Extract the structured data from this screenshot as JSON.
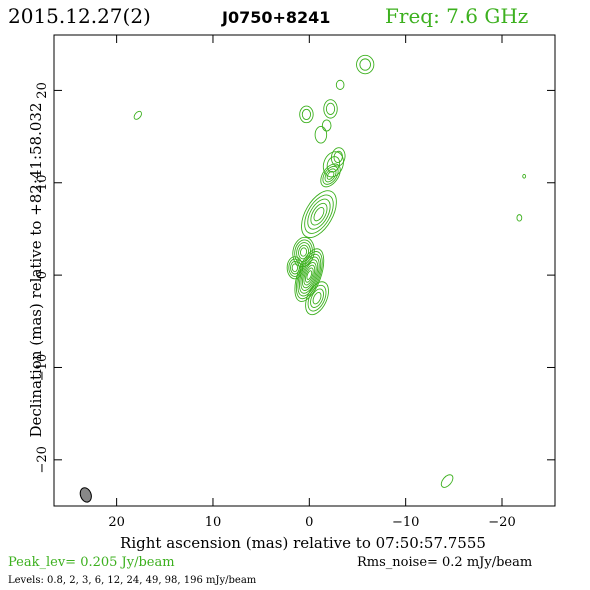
{
  "header": {
    "date": "2015.12.27(2)",
    "source": "J0750+8241",
    "freq": "Freq: 7.6 GHz"
  },
  "footer": {
    "peak": "Peak_lev=  0.205 Jy/beam",
    "rms": "Rms_noise=  0.2 mJy/beam",
    "levels": "Levels: 0.8,  2,  3,  6,  12,  24,  49,  98, 196 mJy/beam"
  },
  "colors": {
    "contour": "#3cb01e",
    "text_green": "#3cb01e",
    "beam": "#888888"
  },
  "chart_data": {
    "type": "contour",
    "title": "",
    "xlabel": "Right ascension (mas) relative to 07:50:57.7555",
    "ylabel": "Declination (mas) relative to +82:41:58.032",
    "xlim": [
      26.5,
      -25.5
    ],
    "ylim": [
      -25,
      26
    ],
    "xticks": [
      20,
      10,
      0,
      -10,
      -20
    ],
    "xtick_labels": [
      "20",
      "10",
      "0",
      "−10",
      "−20"
    ],
    "yticks": [
      20,
      10,
      0,
      -10,
      -20
    ],
    "ytick_labels": [
      "20",
      "10",
      "0",
      "−10",
      "−20"
    ],
    "levels_mJy": [
      0.8,
      2,
      3,
      6,
      12,
      24,
      49,
      98,
      196
    ],
    "beam": {
      "x": 23.2,
      "y": -23.8,
      "major": 1.6,
      "minor": 1.1,
      "pa": 20
    },
    "components": [
      {
        "x": 0.0,
        "y": 0.0,
        "a": 3.0,
        "b": 1.2,
        "pa": 20,
        "n": 9
      },
      {
        "x": -0.8,
        "y": -2.5,
        "a": 1.9,
        "b": 1.0,
        "pa": 25,
        "n": 4
      },
      {
        "x": 0.6,
        "y": 2.5,
        "a": 1.6,
        "b": 1.1,
        "pa": 10,
        "n": 5
      },
      {
        "x": 1.5,
        "y": 0.8,
        "a": 1.2,
        "b": 0.8,
        "pa": 0,
        "n": 4
      },
      {
        "x": -1.0,
        "y": 6.6,
        "a": 2.8,
        "b": 1.4,
        "pa": 30,
        "n": 5
      },
      {
        "x": -2.2,
        "y": 10.8,
        "a": 1.4,
        "b": 0.8,
        "pa": 35,
        "n": 4
      },
      {
        "x": -2.5,
        "y": 12.0,
        "a": 1.4,
        "b": 1.0,
        "pa": 20,
        "n": 2
      },
      {
        "x": -3.0,
        "y": 12.8,
        "a": 1.0,
        "b": 0.7,
        "pa": 10,
        "n": 2
      },
      {
        "x": -1.2,
        "y": 15.2,
        "a": 0.9,
        "b": 0.6,
        "pa": 0,
        "n": 1
      },
      {
        "x": 0.3,
        "y": 17.4,
        "a": 0.9,
        "b": 0.7,
        "pa": 0,
        "n": 2
      },
      {
        "x": -2.2,
        "y": 18.0,
        "a": 1.0,
        "b": 0.7,
        "pa": 0,
        "n": 2
      },
      {
        "x": -1.8,
        "y": 16.2,
        "a": 0.6,
        "b": 0.45,
        "pa": 0,
        "n": 1
      },
      {
        "x": -3.2,
        "y": 20.6,
        "a": 0.5,
        "b": 0.4,
        "pa": 0,
        "n": 1
      },
      {
        "x": -5.8,
        "y": 22.8,
        "a": 1.0,
        "b": 0.9,
        "pa": 0,
        "n": 2
      },
      {
        "x": 17.8,
        "y": 17.3,
        "a": 0.5,
        "b": 0.3,
        "pa": 40,
        "n": 1
      },
      {
        "x": -14.3,
        "y": -22.3,
        "a": 0.8,
        "b": 0.45,
        "pa": 40,
        "n": 1
      },
      {
        "x": -21.8,
        "y": 6.2,
        "a": 0.35,
        "b": 0.25,
        "pa": 0,
        "n": 1
      },
      {
        "x": -22.3,
        "y": 10.7,
        "a": 0.2,
        "b": 0.15,
        "pa": 0,
        "n": 1
      }
    ]
  }
}
